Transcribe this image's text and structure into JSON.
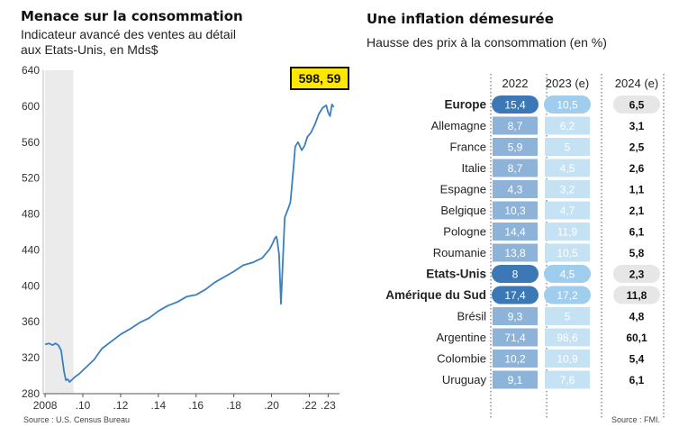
{
  "left_panel": {
    "title": "Menace sur la consommation",
    "subtitle_line1": "Indicateur avancé des ventes au détail",
    "subtitle_line2": "aux Etats-Unis, en Mds$",
    "source": "Source : U.S. Census Bureau"
  },
  "right_panel": {
    "title": "Une inflation démesurée",
    "subtitle": "Hausse des prix à la consommation (en %)",
    "source": "Source : FMI."
  },
  "colors": {
    "line": "#3a7fc1",
    "callout_fill": "#ffe800",
    "recession_shade": "#ebebeb",
    "dark_pill": "#3b78b5",
    "light_pill": "#9fcdee",
    "grey_pill": "#e6e6e6",
    "bar_2022": "#8eb3d8",
    "bar_2023": "#c5e2f4"
  },
  "chart_data": [
    {
      "type": "line",
      "title": "Menace sur la consommation",
      "subtitle": "Indicateur avancé des ventes au détail aux Etats-Unis, en Mds$",
      "ylim": [
        280,
        640
      ],
      "yticks": [
        280,
        320,
        360,
        400,
        440,
        480,
        520,
        560,
        600,
        640
      ],
      "xlim": [
        2007.9,
        2023.6
      ],
      "xticks": [
        2008,
        2010,
        2012,
        2014,
        2016,
        2018,
        2020,
        2022,
        2023
      ],
      "xtick_labels": [
        "2008",
        ".10",
        ".12",
        ".14",
        ".16",
        ".18",
        ".20",
        ".22",
        ".23"
      ],
      "shaded_period": [
        2008.0,
        2009.5
      ],
      "grid": false,
      "callout": "598, 59",
      "series": [
        {
          "x": [
            2008.0,
            2008.2,
            2008.4,
            2008.55,
            2008.7,
            2008.85,
            2009.0,
            2009.1,
            2009.2,
            2009.3,
            2009.45,
            2009.6,
            2009.8,
            2010.0,
            2010.3,
            2010.6,
            2011.0,
            2011.5,
            2012.0,
            2012.5,
            2013.0,
            2013.5,
            2014.0,
            2014.5,
            2015.0,
            2015.5,
            2016.0,
            2016.5,
            2017.0,
            2017.5,
            2018.0,
            2018.5,
            2019.0,
            2019.5,
            2019.9,
            2020.05,
            2020.15,
            2020.25,
            2020.3,
            2020.4,
            2020.5,
            2020.7,
            2020.9,
            2021.0,
            2021.15,
            2021.25,
            2021.4,
            2021.6,
            2021.75,
            2021.9,
            2022.1,
            2022.3,
            2022.5,
            2022.7,
            2022.9,
            2023.0,
            2023.1,
            2023.2,
            2023.3
          ],
          "y": [
            335,
            336,
            334,
            336,
            334,
            328,
            305,
            295,
            296,
            293,
            296,
            299,
            302,
            306,
            312,
            318,
            330,
            338,
            346,
            352,
            359,
            364,
            372,
            378,
            382,
            388,
            390,
            396,
            404,
            410,
            416,
            423,
            426,
            431,
            441,
            447,
            452,
            455,
            451,
            435,
            380,
            476,
            487,
            493,
            529,
            555,
            560,
            551,
            556,
            566,
            571,
            580,
            591,
            598,
            601,
            593,
            589,
            602,
            599
          ]
        }
      ]
    },
    {
      "type": "table",
      "title": "Une inflation démesurée",
      "subtitle": "Hausse des prix à la consommation (en %)",
      "columns": [
        "2022",
        "2023 (e)",
        "2024 (e)"
      ],
      "rows": [
        {
          "label": "Europe",
          "group": true,
          "values": [
            15.4,
            10.5,
            6.5
          ],
          "display": [
            "15,4",
            "10,5",
            "6,5"
          ]
        },
        {
          "label": "Allemagne",
          "group": false,
          "values": [
            8.7,
            6.2,
            3.1
          ],
          "display": [
            "8,7",
            "6,2",
            "3,1"
          ]
        },
        {
          "label": "France",
          "group": false,
          "values": [
            5.9,
            5,
            2.5
          ],
          "display": [
            "5,9",
            "5",
            "2,5"
          ]
        },
        {
          "label": "Italie",
          "group": false,
          "values": [
            8.7,
            4.5,
            2.6
          ],
          "display": [
            "8,7",
            "4,5",
            "2,6"
          ]
        },
        {
          "label": "Espagne",
          "group": false,
          "values": [
            4.3,
            3.2,
            1.1
          ],
          "display": [
            "4,3",
            "3,2",
            "1,1"
          ]
        },
        {
          "label": "Belgique",
          "group": false,
          "values": [
            10.3,
            4.7,
            2.1
          ],
          "display": [
            "10,3",
            "4,7",
            "2,1"
          ]
        },
        {
          "label": "Pologne",
          "group": false,
          "values": [
            14.4,
            11.9,
            6.1
          ],
          "display": [
            "14,4",
            "11,9",
            "6,1"
          ]
        },
        {
          "label": "Roumanie",
          "group": false,
          "values": [
            13.8,
            10.5,
            5.8
          ],
          "display": [
            "13,8",
            "10,5",
            "5,8"
          ]
        },
        {
          "label": "Etats-Unis",
          "group": true,
          "values": [
            8,
            4.5,
            2.3
          ],
          "display": [
            "8",
            "4,5",
            "2,3"
          ]
        },
        {
          "label": "Amérique du Sud",
          "group": true,
          "values": [
            17.4,
            17.2,
            11.8
          ],
          "display": [
            "17,4",
            "17,2",
            "11,8"
          ]
        },
        {
          "label": "Brésil",
          "group": false,
          "values": [
            9.3,
            5,
            4.8
          ],
          "display": [
            "9,3",
            "5",
            "4,8"
          ]
        },
        {
          "label": "Argentine",
          "group": false,
          "values": [
            71.4,
            98.6,
            60.1
          ],
          "display": [
            "71,4",
            "98,6",
            "60,1"
          ]
        },
        {
          "label": "Colombie",
          "group": false,
          "values": [
            10.2,
            10.9,
            5.4
          ],
          "display": [
            "10,2",
            "10,9",
            "5,4"
          ]
        },
        {
          "label": "Uruguay",
          "group": false,
          "values": [
            9.1,
            7.6,
            6.1
          ],
          "display": [
            "9,1",
            "7,6",
            "6,1"
          ]
        }
      ]
    }
  ]
}
